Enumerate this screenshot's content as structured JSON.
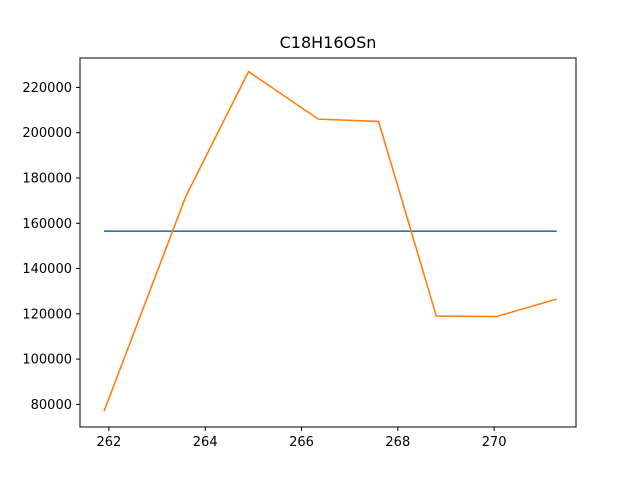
{
  "chart_data": {
    "type": "line",
    "title": "C18H16OSn",
    "xlabel": "",
    "ylabel": "",
    "xlim": [
      261.4,
      271.7
    ],
    "ylim": [
      70000,
      233000
    ],
    "grid": false,
    "legend": "none",
    "x_ticks": [
      262,
      264,
      266,
      268,
      270
    ],
    "x_tick_labels": [
      "262",
      "264",
      "266",
      "268",
      "270"
    ],
    "y_ticks": [
      80000,
      100000,
      120000,
      140000,
      160000,
      180000,
      200000,
      220000
    ],
    "y_tick_labels": [
      "80000",
      "100000",
      "120000",
      "140000",
      "160000",
      "180000",
      "200000",
      "220000"
    ],
    "series": [
      {
        "color": "#1f77b4",
        "x": [
          261.9,
          271.3
        ],
        "y": [
          156500,
          156500
        ]
      },
      {
        "color": "#ff7f0e",
        "x": [
          261.9,
          263.6,
          264.9,
          266.35,
          267.6,
          268.8,
          270.05,
          271.3
        ],
        "y": [
          77000,
          172000,
          227000,
          206000,
          205000,
          119000,
          118800,
          126500
        ]
      }
    ]
  }
}
